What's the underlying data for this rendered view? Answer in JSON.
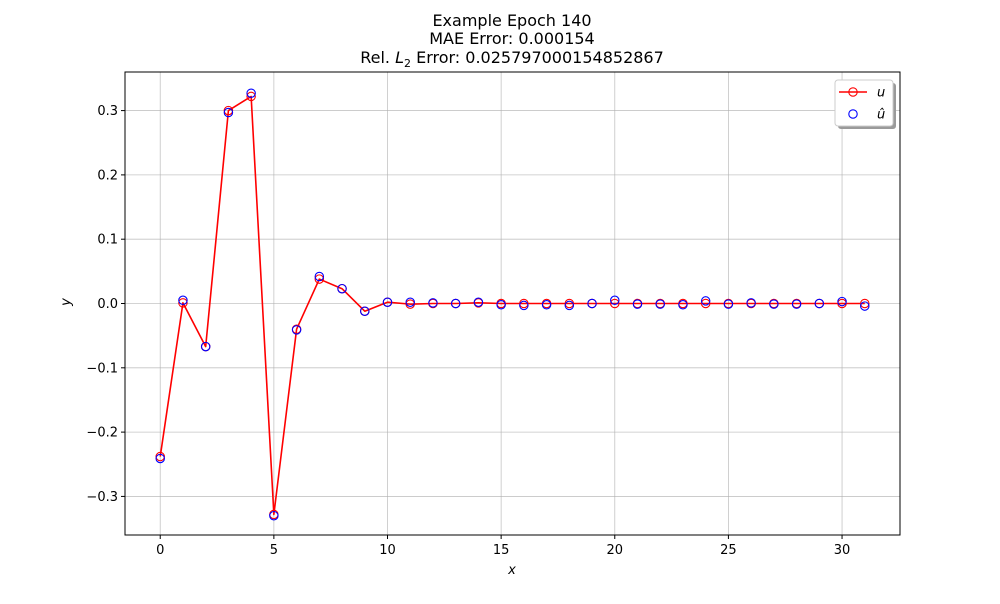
{
  "figure": {
    "title_lines": [
      "Example Epoch 140",
      "MAE Error: 0.000154"
    ],
    "title_l2_prefix": "Rel. ",
    "title_l2_symbol": "L",
    "title_l2_sub": "2",
    "title_l2_suffix": " Error: 0.025797000154852867"
  },
  "chart_data": {
    "type": "line",
    "xlabel": "x",
    "ylabel": "y",
    "xlim": [
      -1.55,
      32.55
    ],
    "ylim": [
      -0.36,
      0.36
    ],
    "xticks": [
      0,
      5,
      10,
      15,
      20,
      25,
      30
    ],
    "yticks": [
      -0.3,
      -0.2,
      -0.1,
      0.0,
      0.1,
      0.2,
      0.3
    ],
    "ytick_labels": [
      "−0.3",
      "−0.2",
      "−0.1",
      "0.0",
      "0.1",
      "0.2",
      "0.3"
    ],
    "grid": true,
    "legend_placement": "top-right",
    "x": [
      0,
      1,
      2,
      3,
      4,
      5,
      6,
      7,
      8,
      9,
      10,
      11,
      12,
      13,
      14,
      15,
      16,
      17,
      18,
      19,
      20,
      21,
      22,
      23,
      24,
      25,
      26,
      27,
      28,
      29,
      30,
      31
    ],
    "series": [
      {
        "name": "u",
        "render": "line-with-open-circles",
        "color": "#ff0000",
        "values": [
          -0.238,
          0.001,
          -0.067,
          0.3,
          0.322,
          -0.328,
          -0.04,
          0.038,
          0.023,
          -0.012,
          0.002,
          -0.001,
          0.0,
          0.0,
          0.001,
          0.0,
          0.0,
          0.0,
          0.0,
          0.0,
          0.0,
          0.0,
          0.0,
          0.0,
          0.0,
          0.0,
          0.0,
          0.0,
          0.0,
          0.0,
          0.0,
          0.0
        ]
      },
      {
        "name": "û",
        "render": "open-circles",
        "color": "#0000ff",
        "values": [
          -0.241,
          0.005,
          -0.067,
          0.297,
          0.327,
          -0.33,
          -0.041,
          0.042,
          0.023,
          -0.012,
          0.002,
          0.002,
          0.001,
          0.0,
          0.002,
          -0.002,
          -0.003,
          -0.002,
          -0.003,
          0.0,
          0.005,
          -0.001,
          -0.001,
          -0.002,
          0.004,
          -0.001,
          0.001,
          -0.001,
          -0.001,
          0.0,
          0.003,
          -0.004
        ]
      }
    ],
    "colors": {
      "u": "#ff0000",
      "u_hat": "#0000ff",
      "grid": "#b0b0b0"
    }
  }
}
